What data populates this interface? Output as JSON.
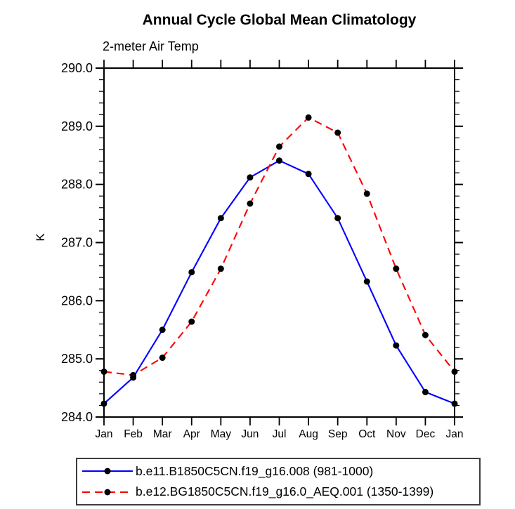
{
  "page": {
    "background_color": "#ffffff",
    "text_color": "#000000"
  },
  "chart_data": {
    "type": "line",
    "title": "Annual Cycle Global Mean Climatology",
    "subtitle": "2-meter Air Temp",
    "xlabel": "",
    "ylabel": "K",
    "x_categories": [
      "Jan",
      "Feb",
      "Mar",
      "Apr",
      "May",
      "Jun",
      "Jul",
      "Aug",
      "Sep",
      "Oct",
      "Nov",
      "Dec",
      "Jan"
    ],
    "ylim": [
      284.0,
      290.0
    ],
    "y_major_step": 1.0,
    "y_minor_step": 0.2,
    "y_tick_label_format": "one_decimal",
    "grid": false,
    "legend_position": "bottom",
    "axis_color": "#000000",
    "marker": {
      "shape": "circle",
      "color": "#000000",
      "radius": 4.5
    },
    "series": [
      {
        "name": "b.e11.B1850C5CN.f19_g16.008 (981-1000)",
        "color": "#0000ff",
        "line_style": "solid",
        "dash_svg": "none",
        "values": [
          284.23,
          284.68,
          285.5,
          286.49,
          287.42,
          288.12,
          288.41,
          288.18,
          287.42,
          286.33,
          285.23,
          284.43,
          284.23
        ]
      },
      {
        "name": "b.e12.BG1850C5CN.f19_g16.0_AEQ.001 (1350-1399)",
        "color": "#ff0000",
        "line_style": "dashed",
        "dash_svg": "11,7",
        "values": [
          284.78,
          284.72,
          285.02,
          285.64,
          286.55,
          287.67,
          288.65,
          289.15,
          288.89,
          287.84,
          286.55,
          285.41,
          284.78
        ]
      }
    ]
  }
}
